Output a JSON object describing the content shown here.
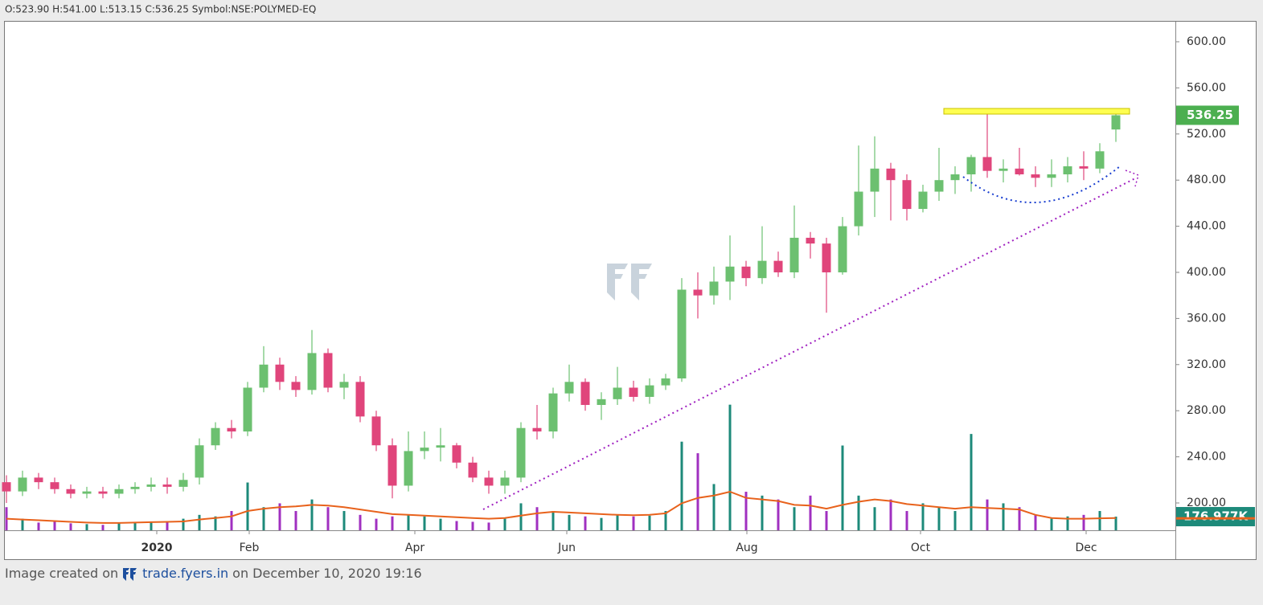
{
  "chart_data": {
    "type": "candlestick",
    "header": "O:523.90 H:541.00 L:513.15 C:536.25 Symbol:NSE:POLYMED-EQ",
    "open": [
      218,
      210,
      222,
      218,
      212,
      208,
      210,
      208,
      212,
      214,
      216,
      214,
      222,
      250,
      265,
      262,
      300,
      320,
      305,
      298,
      330,
      300,
      305,
      275,
      250,
      215,
      245,
      248,
      250,
      235,
      222,
      215,
      222,
      265,
      262,
      295,
      305,
      285,
      290,
      300,
      292,
      302,
      308,
      385,
      380,
      392,
      405,
      395,
      410,
      400,
      430,
      425,
      400,
      440,
      470,
      490,
      480,
      455,
      470,
      480,
      485,
      500,
      488,
      490,
      485,
      482,
      485,
      492,
      490,
      523.9
    ],
    "high": [
      224,
      228,
      226,
      222,
      216,
      214,
      214,
      216,
      218,
      222,
      222,
      226,
      256,
      270,
      272,
      305,
      336,
      326,
      310,
      350,
      334,
      312,
      310,
      280,
      256,
      262,
      262,
      265,
      252,
      240,
      228,
      228,
      270,
      285,
      300,
      320,
      308,
      296,
      318,
      306,
      308,
      312,
      395,
      400,
      405,
      432,
      410,
      440,
      418,
      458,
      435,
      430,
      448,
      510,
      518,
      495,
      485,
      476,
      508,
      492,
      502,
      542,
      498,
      508,
      492,
      498,
      500,
      505,
      512,
      541
    ],
    "low": [
      200,
      206,
      212,
      208,
      204,
      204,
      204,
      204,
      208,
      210,
      208,
      210,
      216,
      246,
      256,
      258,
      296,
      298,
      292,
      294,
      296,
      290,
      270,
      245,
      204,
      210,
      238,
      236,
      230,
      218,
      208,
      208,
      218,
      255,
      256,
      288,
      280,
      272,
      285,
      288,
      286,
      298,
      305,
      360,
      372,
      376,
      388,
      390,
      396,
      395,
      412,
      365,
      398,
      432,
      448,
      445,
      445,
      452,
      462,
      468,
      470,
      482,
      478,
      484,
      474,
      474,
      478,
      480,
      486,
      513.15
    ],
    "close": [
      210,
      222,
      218,
      212,
      208,
      210,
      208,
      212,
      214,
      216,
      214,
      220,
      250,
      265,
      262,
      300,
      320,
      305,
      298,
      330,
      300,
      305,
      275,
      250,
      215,
      245,
      248,
      250,
      235,
      222,
      215,
      222,
      265,
      262,
      295,
      305,
      285,
      290,
      300,
      292,
      302,
      308,
      385,
      380,
      392,
      405,
      395,
      410,
      400,
      430,
      425,
      400,
      440,
      470,
      490,
      480,
      455,
      470,
      480,
      485,
      500,
      488,
      490,
      485,
      482,
      485,
      492,
      490,
      505,
      536.25
    ],
    "volume": [
      300000,
      150000,
      100000,
      120000,
      90000,
      80000,
      70000,
      90000,
      100000,
      110000,
      120000,
      150000,
      200000,
      180000,
      250000,
      620000,
      300000,
      350000,
      250000,
      400000,
      300000,
      250000,
      200000,
      150000,
      180000,
      200000,
      180000,
      150000,
      120000,
      110000,
      100000,
      150000,
      350000,
      300000,
      250000,
      200000,
      180000,
      160000,
      200000,
      180000,
      190000,
      250000,
      1150000,
      1000000,
      600000,
      1630000,
      500000,
      450000,
      400000,
      300000,
      450000,
      250000,
      1100000,
      450000,
      300000,
      400000,
      250000,
      350000,
      300000,
      250000,
      1250000,
      400000,
      350000,
      300000,
      200000,
      150000,
      180000,
      200000,
      250000,
      176977
    ],
    "volume_ma": [
      150000,
      140000,
      130000,
      120000,
      110000,
      100000,
      95000,
      95000,
      100000,
      105000,
      110000,
      115000,
      140000,
      160000,
      180000,
      250000,
      280000,
      300000,
      310000,
      330000,
      320000,
      300000,
      270000,
      240000,
      210000,
      200000,
      190000,
      180000,
      170000,
      160000,
      150000,
      160000,
      190000,
      220000,
      240000,
      230000,
      220000,
      210000,
      200000,
      195000,
      200000,
      220000,
      350000,
      420000,
      450000,
      500000,
      420000,
      400000,
      380000,
      330000,
      320000,
      280000,
      330000,
      370000,
      400000,
      380000,
      340000,
      320000,
      300000,
      280000,
      300000,
      290000,
      280000,
      270000,
      200000,
      160000,
      150000,
      150000,
      155000,
      160000
    ],
    "last_price_label": "536.25",
    "last_volume_label": "176.977K",
    "up_color": "#6cc070",
    "down_color": "#e0457b",
    "up_volume_color": "#1d8a7a",
    "down_volume_color": "#a030c0",
    "ma_color": "#e8621c",
    "ylim": [
      176.3,
      617.4
    ],
    "vlim": [
      0,
      6600000
    ],
    "xlim": [
      -0.1,
      72.7
    ],
    "yticks": [
      {
        "value": 200,
        "label": "200.00"
      },
      {
        "value": 240,
        "label": "240.00"
      },
      {
        "value": 280,
        "label": "280.00"
      },
      {
        "value": 320,
        "label": "320.00"
      },
      {
        "value": 360,
        "label": "360.00"
      },
      {
        "value": 400,
        "label": "400.00"
      },
      {
        "value": 440,
        "label": "440.00"
      },
      {
        "value": 480,
        "label": "480.00"
      },
      {
        "value": 520,
        "label": "520.00"
      },
      {
        "value": 560,
        "label": "560.00"
      },
      {
        "value": 600,
        "label": "600.00"
      }
    ],
    "xticks": [
      {
        "value": 9.35,
        "label": "2020"
      },
      {
        "value": 15.1,
        "label": "Feb"
      },
      {
        "value": 25.4,
        "label": "Apr"
      },
      {
        "value": 34.85,
        "label": "Jun"
      },
      {
        "value": 46.05,
        "label": "Aug"
      },
      {
        "value": 56.85,
        "label": "Oct"
      },
      {
        "value": 67.15,
        "label": "Dec"
      }
    ]
  },
  "footer": {
    "prefix": "Image created on",
    "site": "trade.fyers.in",
    "suffix": "on December 10, 2020 19:16"
  }
}
